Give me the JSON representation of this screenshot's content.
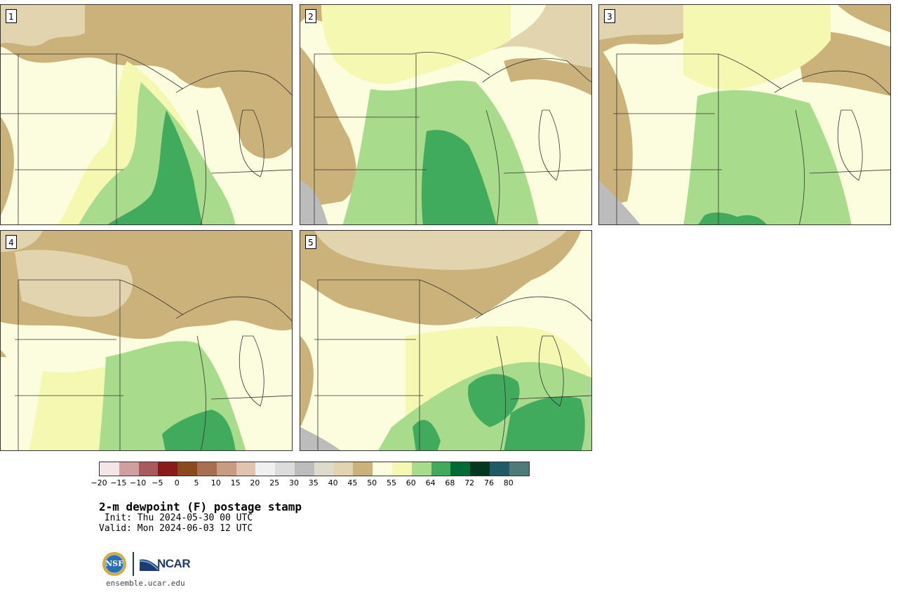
{
  "panels": [
    {
      "number": "1"
    },
    {
      "number": "2"
    },
    {
      "number": "3"
    },
    {
      "number": "4"
    },
    {
      "number": "5"
    }
  ],
  "legend": {
    "ticks": [
      "−20",
      "−15",
      "−10",
      "−5",
      "0",
      "5",
      "10",
      "15",
      "20",
      "25",
      "30",
      "35",
      "40",
      "45",
      "50",
      "55",
      "60",
      "64",
      "68",
      "72",
      "76",
      "80"
    ],
    "colors": [
      "#f3e6e6",
      "#d0a0a0",
      "#a85a5f",
      "#8b1a1a",
      "#8b4a1a",
      "#a87050",
      "#c89c80",
      "#e0c4b0",
      "#f0f0f0",
      "#dcdcdc",
      "#bcbcbc",
      "#dedbcc",
      "#e2d4ae",
      "#cbb27a",
      "#fcfdde",
      "#f4f8b0",
      "#a8dc8c",
      "#41ab5d",
      "#006b35",
      "#003820",
      "#1d5b66",
      "#4f7a7a"
    ]
  },
  "title": "2-m dewpoint (F) postage stamp",
  "init_line": " Init: Thu 2024-05-30 00 UTC",
  "valid_line": "Valid: Mon 2024-06-03 12 UTC",
  "logos": {
    "nsf": "NSF",
    "ncar": "NCAR"
  },
  "url": "ensemble.ucar.edu"
}
